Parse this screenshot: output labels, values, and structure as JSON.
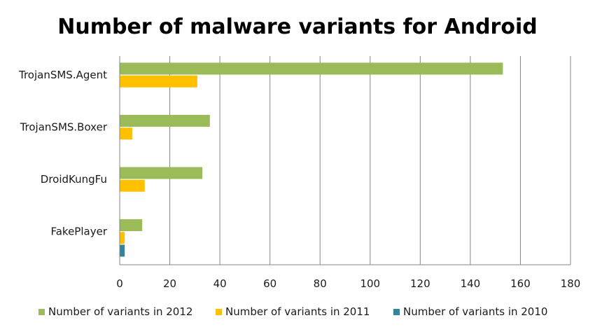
{
  "chart_data": {
    "type": "bar",
    "orientation": "horizontal",
    "title": "Number of malware variants for Android",
    "xlabel": "",
    "ylabel": "",
    "categories": [
      "TrojanSMS.Agent",
      "TrojanSMS.Boxer",
      "DroidKungFu",
      "FakePlayer"
    ],
    "series": [
      {
        "name": "Number of variants in 2012",
        "color": "#9bbb59",
        "values": [
          153,
          36,
          33,
          9
        ]
      },
      {
        "name": "Number of variants in 2011",
        "color": "#ffc000",
        "values": [
          31,
          5,
          10,
          2
        ]
      },
      {
        "name": "Number of variants in 2010",
        "color": "#31849b",
        "values": [
          0,
          0,
          0,
          2
        ]
      }
    ],
    "xlim": [
      0,
      180
    ],
    "xticks": [
      0,
      20,
      40,
      60,
      80,
      100,
      120,
      140,
      160,
      180
    ],
    "grid": true,
    "legend": "bottom"
  }
}
